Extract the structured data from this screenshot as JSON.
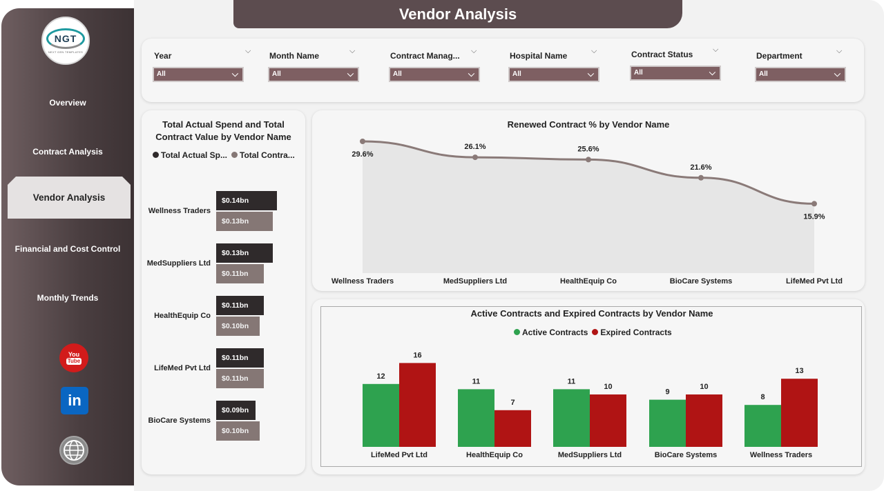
{
  "logo": {
    "text": "NGT",
    "subtitle": "NEXT GEN TEMPLATES"
  },
  "nav": {
    "items": [
      {
        "label": "Overview"
      },
      {
        "label": "Contract Analysis"
      },
      {
        "label": "Vendor Analysis",
        "active": true
      },
      {
        "label": "Financial and Cost Control"
      },
      {
        "label": "Monthly Trends"
      }
    ]
  },
  "social": {
    "youtube_top": "You",
    "youtube_bottom": "Tube",
    "linkedin": "in"
  },
  "header": {
    "title": "Vendor Analysis"
  },
  "filters": [
    {
      "label": "Year",
      "value": "All"
    },
    {
      "label": "Month Name",
      "value": "All"
    },
    {
      "label": "Contract Manag...",
      "value": "All"
    },
    {
      "label": "Hospital Name",
      "value": "All"
    },
    {
      "label": "Contract Status",
      "value": "All"
    },
    {
      "label": "Department",
      "value": "All"
    }
  ],
  "colors": {
    "sidebar": "#5c4c4f",
    "actual_spend": "#2f2a2b",
    "contract_value": "#857775",
    "renewed_line": "#8a7a78",
    "active": "#2ea24f",
    "expired": "#b01414"
  },
  "chart_data": [
    {
      "type": "bar",
      "orientation": "horizontal",
      "title": "Total Actual Spend and Total Contract Value by Vendor Name",
      "legend": [
        "Total Actual Sp...",
        "Total Contra..."
      ],
      "categories": [
        "Wellness Traders",
        "MedSuppliers Ltd",
        "HealthEquip Co",
        "LifeMed Pvt Ltd",
        "BioCare Systems"
      ],
      "series": [
        {
          "name": "Total Actual Spend",
          "values": [
            0.14,
            0.13,
            0.11,
            0.11,
            0.09
          ],
          "labels": [
            "$0.14bn",
            "$0.13bn",
            "$0.11bn",
            "$0.11bn",
            "$0.09bn"
          ]
        },
        {
          "name": "Total Contract Value",
          "values": [
            0.13,
            0.11,
            0.1,
            0.11,
            0.1
          ],
          "labels": [
            "$0.13bn",
            "$0.11bn",
            "$0.10bn",
            "$0.11bn",
            "$0.10bn"
          ]
        }
      ]
    },
    {
      "type": "area",
      "title": "Renewed Contract % by Vendor Name",
      "categories": [
        "Wellness Traders",
        "MedSuppliers Ltd",
        "HealthEquip Co",
        "BioCare Systems",
        "LifeMed Pvt Ltd"
      ],
      "values": [
        29.6,
        26.1,
        25.6,
        21.6,
        15.9
      ],
      "labels": [
        "29.6%",
        "26.1%",
        "25.6%",
        "21.6%",
        "15.9%"
      ]
    },
    {
      "type": "bar",
      "title": "Active Contracts and Expired Contracts by Vendor Name",
      "legend": [
        "Active Contracts",
        "Expired Contracts"
      ],
      "categories": [
        "LifeMed Pvt Ltd",
        "HealthEquip Co",
        "MedSuppliers Ltd",
        "BioCare Systems",
        "Wellness Traders"
      ],
      "series": [
        {
          "name": "Active Contracts",
          "values": [
            12,
            11,
            11,
            9,
            8
          ]
        },
        {
          "name": "Expired Contracts",
          "values": [
            16,
            7,
            10,
            10,
            13
          ]
        }
      ]
    }
  ]
}
